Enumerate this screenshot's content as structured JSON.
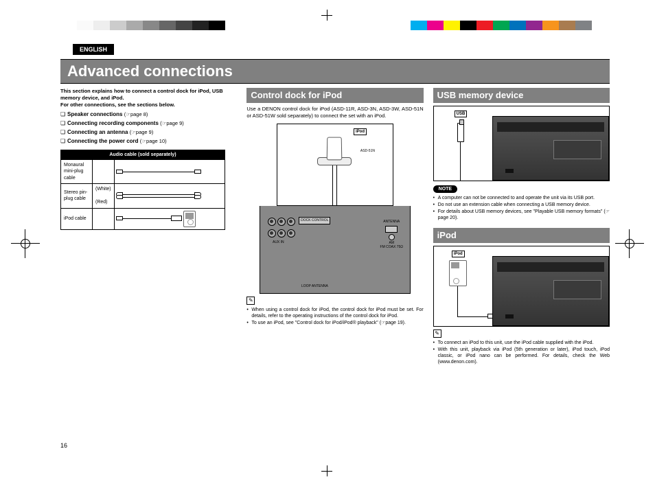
{
  "colorbar_left": [
    "#ffffff",
    "#fafafa",
    "#eeeeee",
    "#cccccc",
    "#aaaaaa",
    "#888888",
    "#666666",
    "#444444",
    "#222222",
    "#000000"
  ],
  "colorbar_right": [
    "#00aeef",
    "#ec008c",
    "#fff200",
    "#000000",
    "#ed1c24",
    "#00a651",
    "#0072bc",
    "#92278f",
    "#f7941d",
    "#a97c50",
    "#808285",
    "#ffffff"
  ],
  "language_tab": "ENGLISH",
  "page_title": "Advanced connections",
  "page_number": "16",
  "left": {
    "intro_bold": "This section explains how to connect a control dock for iPod, USB memory device, and iPod.",
    "intro_rest": "For other connections, see the sections below.",
    "links": [
      {
        "label": "Speaker connections",
        "page": "page 8"
      },
      {
        "label": "Connecting recording components",
        "page": "page 9"
      },
      {
        "label": "Connecting an antenna",
        "page": "page 9"
      },
      {
        "label": "Connecting the power cord",
        "page": "page 10"
      }
    ],
    "table_header": "Audio cable (sold separately)",
    "rows": {
      "r1": "Monaural mini-plug cable",
      "r2": "Stereo pin-plug cable",
      "r2_white": "(White)",
      "r2_red": "(Red)",
      "r3": "iPod cable"
    }
  },
  "center": {
    "heading": "Control dock for iPod",
    "intro": "Use a DENON control dock for iPod (ASD-11R, ASD-3N, ASD-3W, ASD-51N or ASD-51W sold separately) to connect the set with an iPod.",
    "label_ipod": "iPod",
    "label_model": "ASD-51N",
    "panel_labels": {
      "dock": "DOCK CONTROL",
      "aux": "AUX IN",
      "antenna": "ANTENNA",
      "am": "AM",
      "fm": "FM COAX 75Ω",
      "loop": "LOOP ANTENNA"
    },
    "notes": [
      "When using a control dock for iPod, the control dock for iPod must be set. For details, refer to the operating instructions of the control dock for iPod.",
      "To use an iPod, see \"Control dock for iPod/iPod® playback\" (☞page 19)."
    ]
  },
  "right": {
    "usb_heading": "USB memory device",
    "usb_label": "USB",
    "note_label": "NOTE",
    "usb_notes": [
      "A computer can not be connected to and operate the unit via its USB port.",
      "Do not use an extension cable when connecting a USB memory device.",
      "For details about USB memory devices, see \"Playable USB memory formats\" (☞page 20)."
    ],
    "ipod_heading": "iPod",
    "ipod_label": "iPod",
    "ipod_notes": [
      "To connect an iPod to this unit, use the iPod cable supplied with the iPod.",
      "With this unit, playback via iPod (5th generation or later), iPod touch, iPod classic, or iPod nano can be performed. For details, check the Web (www.denon.com)."
    ]
  }
}
